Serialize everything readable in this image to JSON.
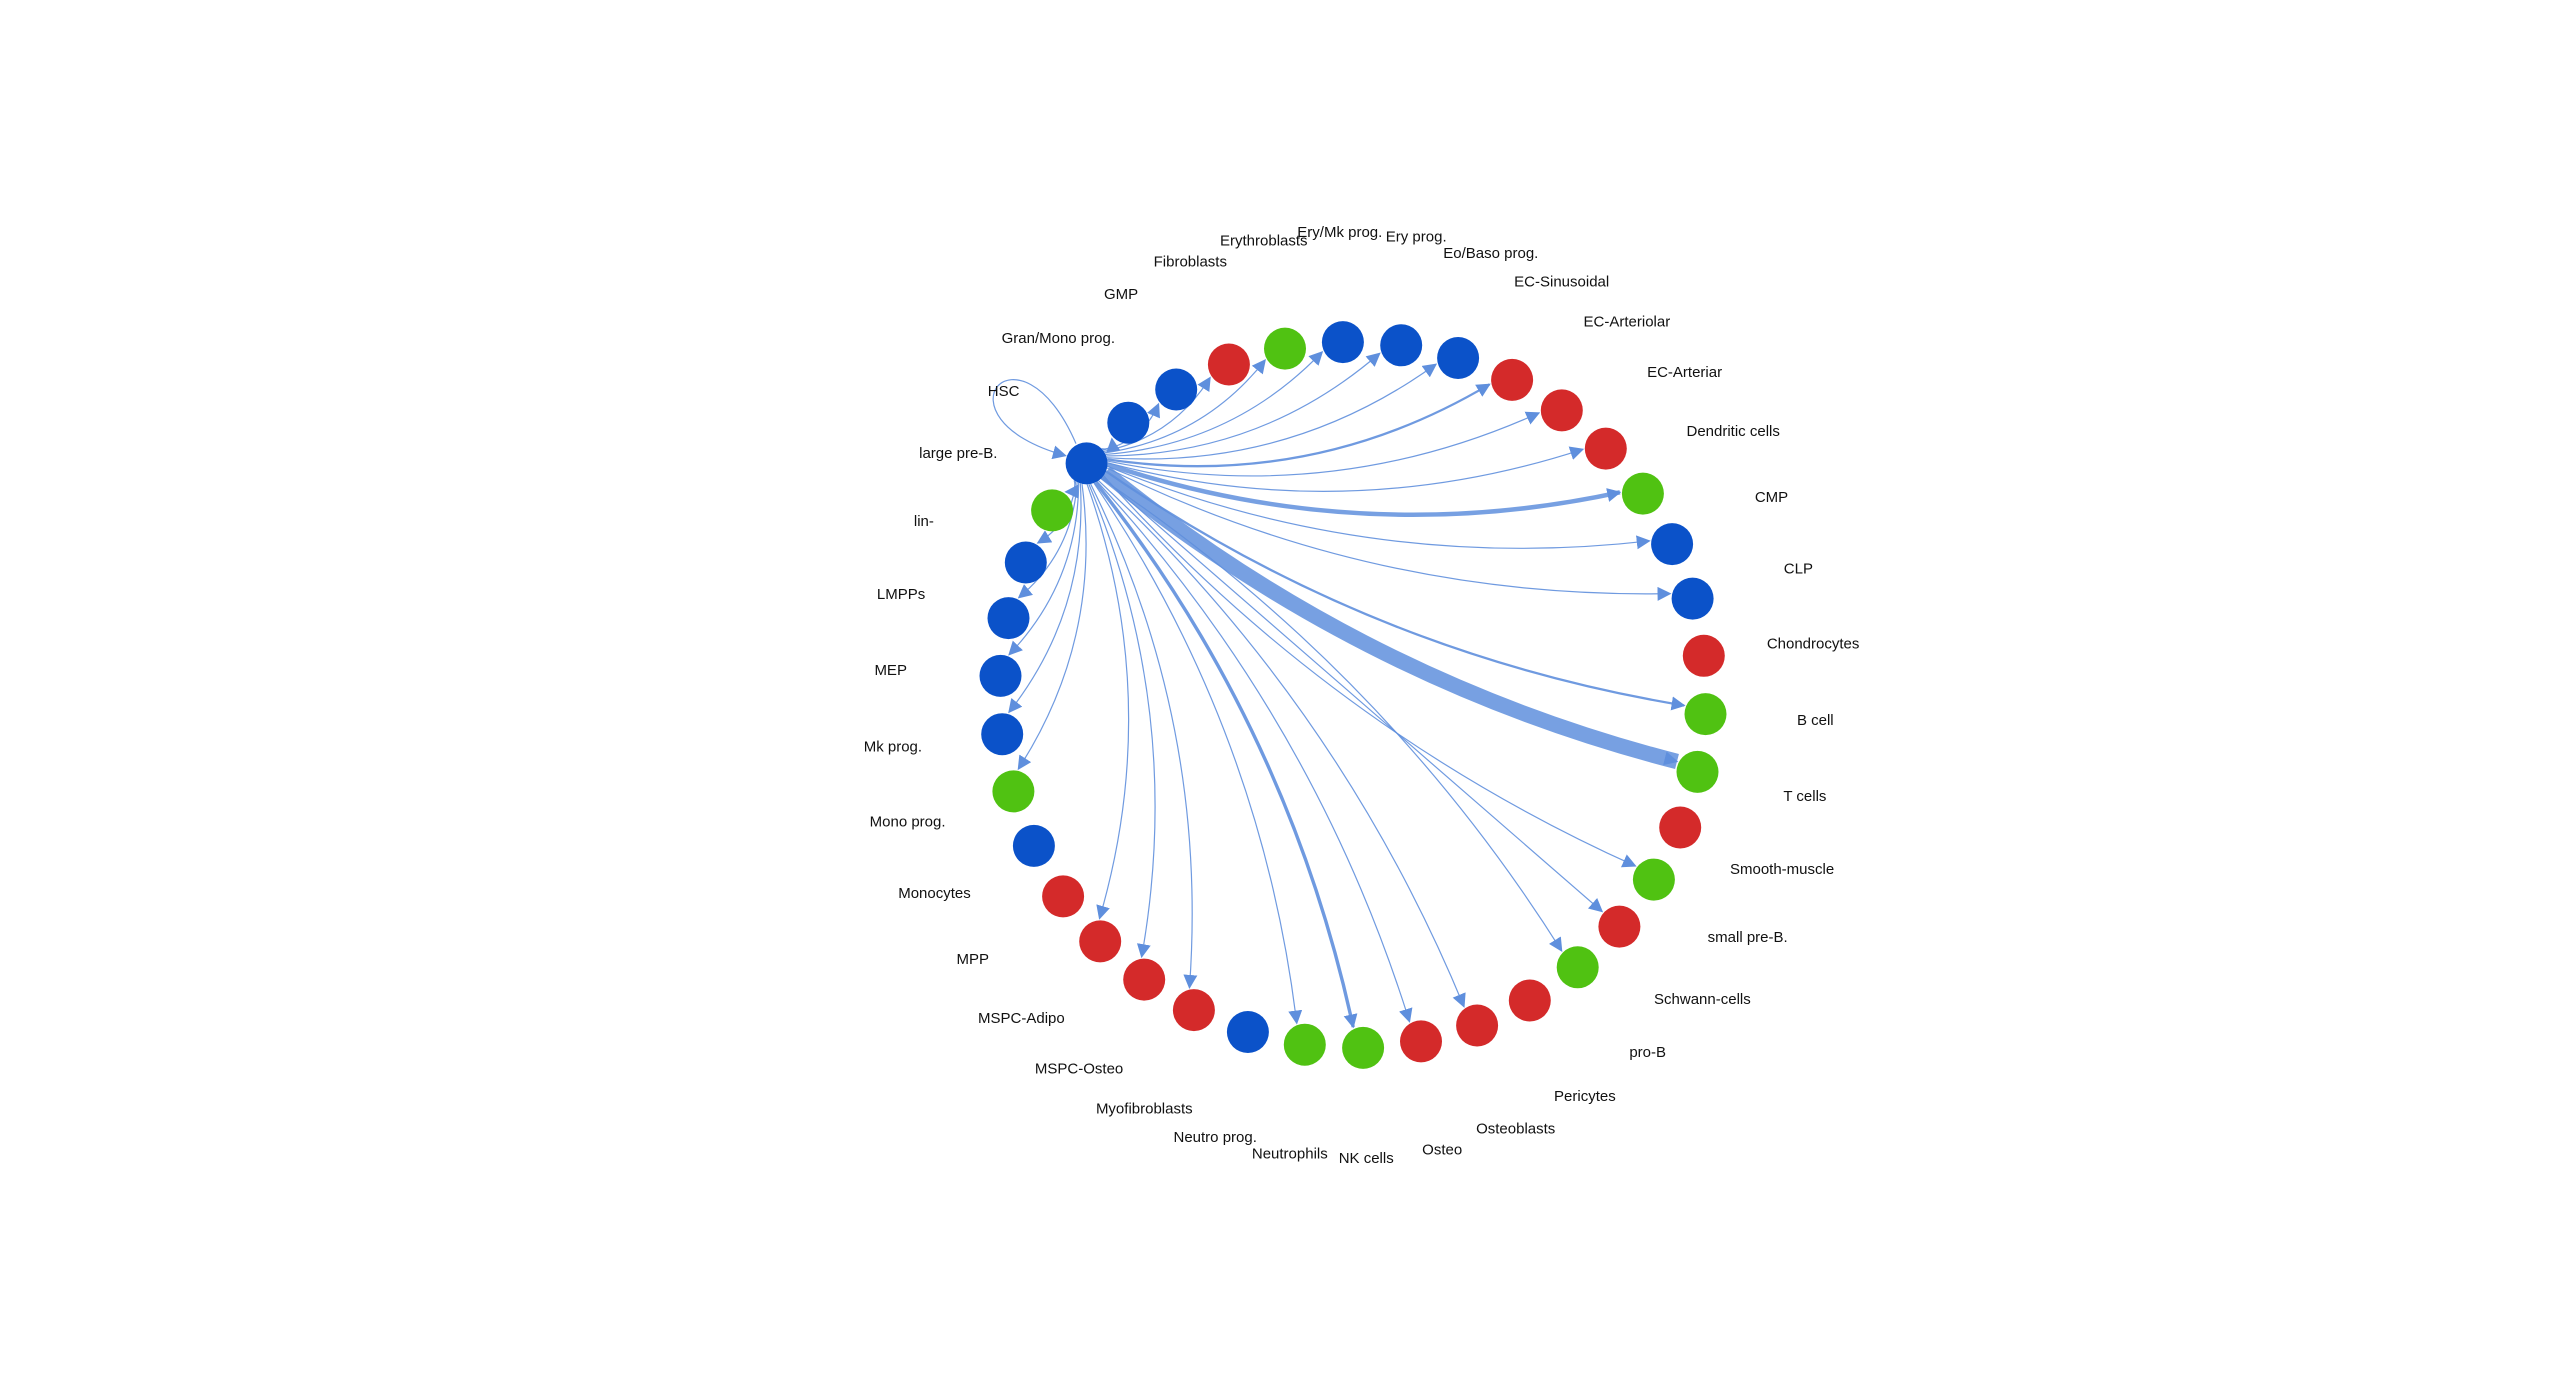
{
  "colors": {
    "red": "#d42a2a",
    "blue": "#0b52c9",
    "green": "#50c212",
    "edge": "#5f8fdd"
  },
  "hub": "HSC",
  "nodes": [
    {
      "name": "HSC",
      "color": "blue"
    },
    {
      "name": "Gran/Mono prog.",
      "color": "blue"
    },
    {
      "name": "GMP",
      "color": "blue"
    },
    {
      "name": "Fibroblasts",
      "color": "red"
    },
    {
      "name": "Erythroblasts",
      "color": "green"
    },
    {
      "name": "Ery/Mk prog.",
      "color": "blue"
    },
    {
      "name": "Ery prog.",
      "color": "blue"
    },
    {
      "name": "Eo/Baso prog.",
      "color": "blue"
    },
    {
      "name": "EC-Sinusoidal",
      "color": "red"
    },
    {
      "name": "EC-Arteriolar",
      "color": "red"
    },
    {
      "name": "EC-Arteriar",
      "color": "red"
    },
    {
      "name": "Dendritic cells",
      "color": "green"
    },
    {
      "name": "CMP",
      "color": "blue"
    },
    {
      "name": "CLP",
      "color": "blue"
    },
    {
      "name": "Chondrocytes",
      "color": "red"
    },
    {
      "name": "B cell",
      "color": "green"
    },
    {
      "name": "T cells",
      "color": "green"
    },
    {
      "name": "Smooth-muscle",
      "color": "red"
    },
    {
      "name": "small pre-B.",
      "color": "green"
    },
    {
      "name": "Schwann-cells",
      "color": "red"
    },
    {
      "name": "pro-B",
      "color": "green"
    },
    {
      "name": "Pericytes",
      "color": "red"
    },
    {
      "name": "Osteoblasts",
      "color": "red"
    },
    {
      "name": "Osteo",
      "color": "red"
    },
    {
      "name": "NK cells",
      "color": "green"
    },
    {
      "name": "Neutrophils",
      "color": "green"
    },
    {
      "name": "Neutro prog.",
      "color": "blue"
    },
    {
      "name": "Myofibroblasts",
      "color": "red"
    },
    {
      "name": "MSPC-Osteo",
      "color": "red"
    },
    {
      "name": "MSPC-Adipo",
      "color": "red"
    },
    {
      "name": "MPP",
      "color": "red"
    },
    {
      "name": "Monocytes",
      "color": "blue"
    },
    {
      "name": "Mono prog.",
      "color": "green"
    },
    {
      "name": "Mk prog.",
      "color": "blue"
    },
    {
      "name": "MEP",
      "color": "blue"
    },
    {
      "name": "LMPPs",
      "color": "blue"
    },
    {
      "name": "lin-",
      "color": "blue"
    },
    {
      "name": "large pre-B.",
      "color": "green"
    }
  ],
  "edges": [
    {
      "source": "HSC",
      "target": "HSC",
      "weight": 1
    },
    {
      "source": "HSC",
      "target": "Gran/Mono prog.",
      "weight": 1
    },
    {
      "source": "HSC",
      "target": "GMP",
      "weight": 1
    },
    {
      "source": "HSC",
      "target": "Fibroblasts",
      "weight": 1
    },
    {
      "source": "HSC",
      "target": "Erythroblasts",
      "weight": 1
    },
    {
      "source": "HSC",
      "target": "Ery/Mk prog.",
      "weight": 1
    },
    {
      "source": "HSC",
      "target": "Ery prog.",
      "weight": 1
    },
    {
      "source": "HSC",
      "target": "Eo/Baso prog.",
      "weight": 1
    },
    {
      "source": "HSC",
      "target": "EC-Sinusoidal",
      "weight": 2
    },
    {
      "source": "HSC",
      "target": "EC-Arteriolar",
      "weight": 1
    },
    {
      "source": "HSC",
      "target": "EC-Arteriar",
      "weight": 1
    },
    {
      "source": "HSC",
      "target": "Dendritic cells",
      "weight": 4
    },
    {
      "source": "HSC",
      "target": "CMP",
      "weight": 1
    },
    {
      "source": "HSC",
      "target": "CLP",
      "weight": 1
    },
    {
      "source": "HSC",
      "target": "B cell",
      "weight": 2
    },
    {
      "source": "HSC",
      "target": "T cells",
      "weight": 14
    },
    {
      "source": "HSC",
      "target": "small pre-B.",
      "weight": 1
    },
    {
      "source": "HSC",
      "target": "Schwann-cells",
      "weight": 1
    },
    {
      "source": "HSC",
      "target": "pro-B",
      "weight": 1
    },
    {
      "source": "HSC",
      "target": "Osteoblasts",
      "weight": 1
    },
    {
      "source": "HSC",
      "target": "Osteo",
      "weight": 1
    },
    {
      "source": "HSC",
      "target": "NK cells",
      "weight": 3
    },
    {
      "source": "HSC",
      "target": "Neutrophils",
      "weight": 1
    },
    {
      "source": "HSC",
      "target": "Myofibroblasts",
      "weight": 1
    },
    {
      "source": "HSC",
      "target": "MSPC-Osteo",
      "weight": 1
    },
    {
      "source": "HSC",
      "target": "MSPC-Adipo",
      "weight": 1
    },
    {
      "source": "HSC",
      "target": "Mono prog.",
      "weight": 1
    },
    {
      "source": "HSC",
      "target": "Mk prog.",
      "weight": 1
    },
    {
      "source": "HSC",
      "target": "MEP",
      "weight": 1
    },
    {
      "source": "HSC",
      "target": "LMPPs",
      "weight": 1
    },
    {
      "source": "HSC",
      "target": "lin-",
      "weight": 1
    },
    {
      "source": "HSC",
      "target": "large pre-B.",
      "weight": 1
    }
  ]
}
